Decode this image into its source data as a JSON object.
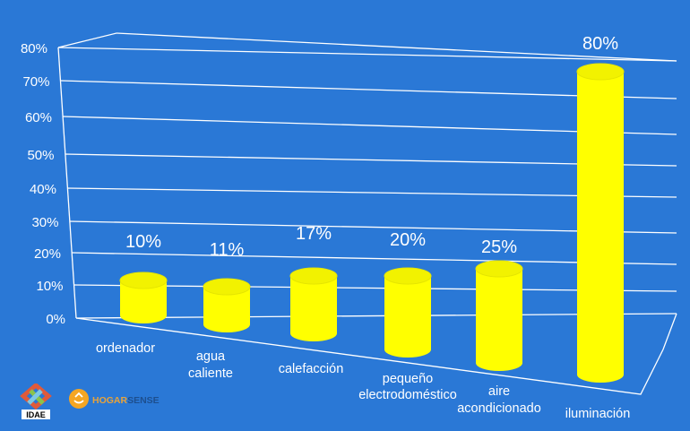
{
  "chart_data": {
    "type": "bar",
    "style": "3d-cylinder",
    "categories": [
      "ordenador",
      "agua caliente",
      "calefacción",
      "pequeño electrodoméstico",
      "aire acondicionado",
      "iluminación"
    ],
    "values": [
      10,
      11,
      17,
      20,
      25,
      80
    ],
    "data_labels": [
      "10%",
      "11%",
      "17%",
      "20%",
      "25%",
      "80%"
    ],
    "y_ticks": [
      "0%",
      "10%",
      "20%",
      "30%",
      "40%",
      "50%",
      "60%",
      "70%",
      "80%"
    ],
    "ylim": [
      0,
      80
    ],
    "grid": true,
    "bar_color": "#ffff00",
    "background_color": "#2a78d6"
  },
  "logos": {
    "idae": "IDAE",
    "hogarsense": "HOGARSENSE"
  }
}
